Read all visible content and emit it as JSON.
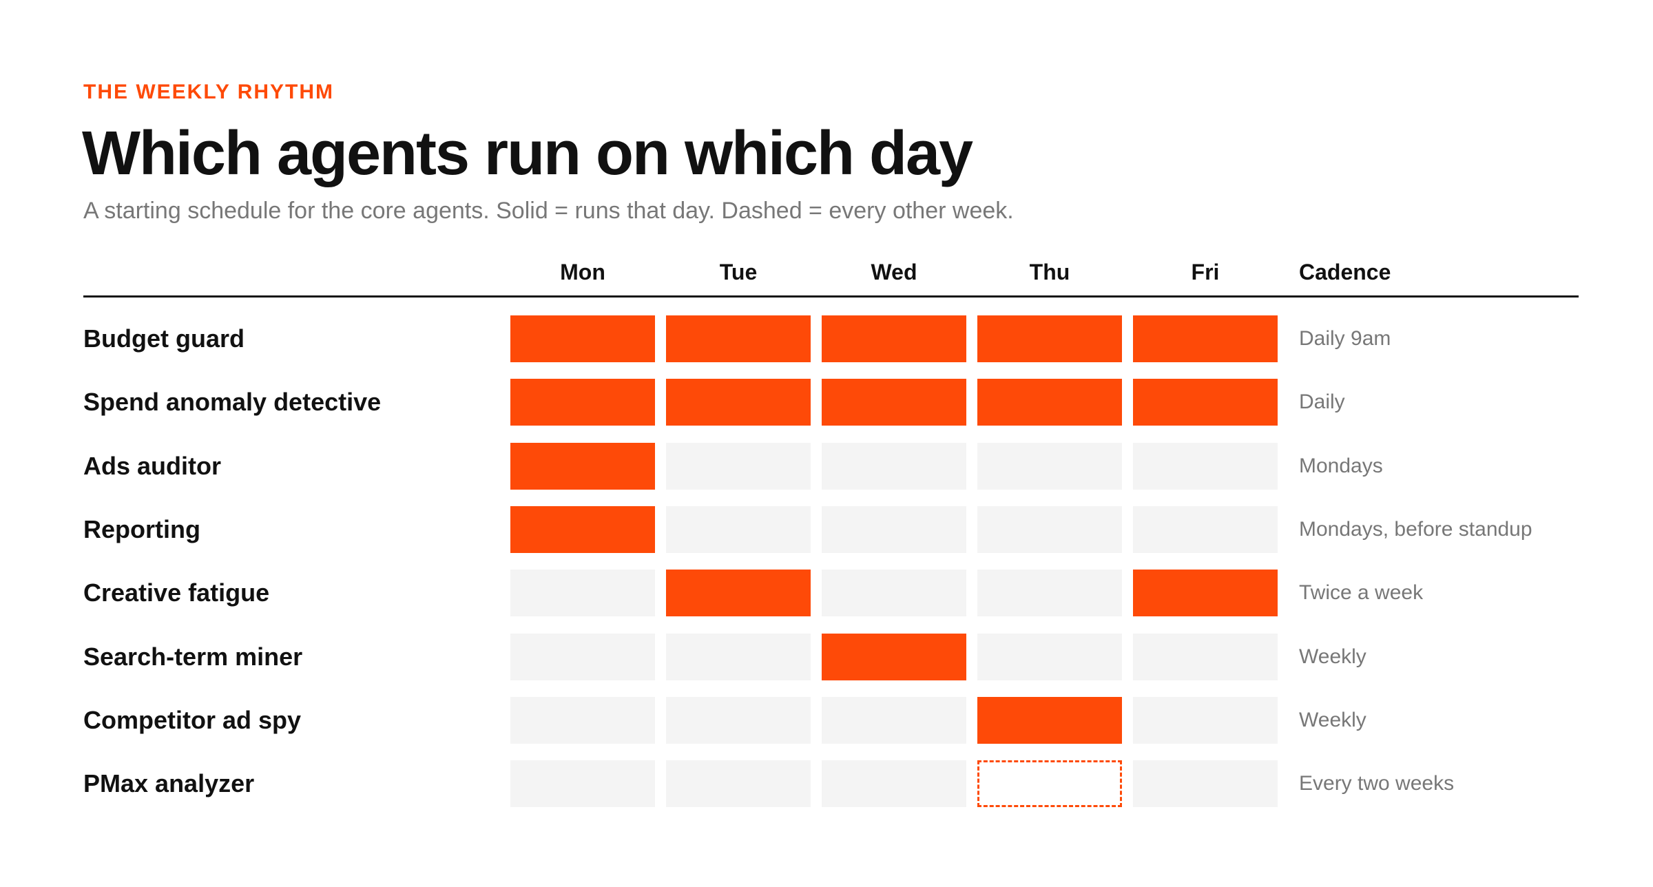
{
  "eyebrow": "THE WEEKLY RHYTHM",
  "title": "Which agents run on which day",
  "subtitle": "A starting schedule for the core agents. Solid = runs that day. Dashed = every other week.",
  "colors": {
    "accent": "#fe4a08",
    "empty_cell": "#f4f4f4",
    "text": "#111111",
    "muted_text": "#777777"
  },
  "columns": {
    "days": [
      "Mon",
      "Tue",
      "Wed",
      "Thu",
      "Fri"
    ],
    "cadence": "Cadence"
  },
  "agents": [
    {
      "name": "Budget guard",
      "schedule": [
        "solid",
        "solid",
        "solid",
        "solid",
        "solid"
      ],
      "cadence": "Daily 9am"
    },
    {
      "name": "Spend anomaly detective",
      "schedule": [
        "solid",
        "solid",
        "solid",
        "solid",
        "solid"
      ],
      "cadence": "Daily"
    },
    {
      "name": "Ads auditor",
      "schedule": [
        "solid",
        "empty",
        "empty",
        "empty",
        "empty"
      ],
      "cadence": "Mondays"
    },
    {
      "name": "Reporting",
      "schedule": [
        "solid",
        "empty",
        "empty",
        "empty",
        "empty"
      ],
      "cadence": "Mondays, before standup"
    },
    {
      "name": "Creative fatigue",
      "schedule": [
        "empty",
        "solid",
        "empty",
        "empty",
        "solid"
      ],
      "cadence": "Twice a week"
    },
    {
      "name": "Search-term miner",
      "schedule": [
        "empty",
        "empty",
        "solid",
        "empty",
        "empty"
      ],
      "cadence": "Weekly"
    },
    {
      "name": "Competitor ad spy",
      "schedule": [
        "empty",
        "empty",
        "empty",
        "solid",
        "empty"
      ],
      "cadence": "Weekly"
    },
    {
      "name": "PMax analyzer",
      "schedule": [
        "empty",
        "empty",
        "empty",
        "dashed",
        "empty"
      ],
      "cadence": "Every two weeks"
    }
  ]
}
